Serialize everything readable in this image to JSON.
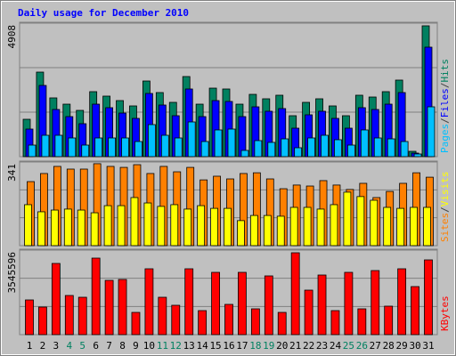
{
  "chart_data": {
    "type": "bar",
    "title": "Daily usage for December 2010",
    "categories": [
      "1",
      "2",
      "3",
      "4",
      "5",
      "6",
      "7",
      "8",
      "9",
      "10",
      "11",
      "12",
      "13",
      "14",
      "15",
      "16",
      "17",
      "18",
      "19",
      "20",
      "21",
      "22",
      "23",
      "24",
      "25",
      "26",
      "27",
      "28",
      "29",
      "30",
      "31"
    ],
    "category_color": "#000000",
    "highlight_color": "#008060",
    "highlighted": [
      3,
      4,
      10,
      11,
      17,
      18,
      24,
      25
    ],
    "legend_separator": "/",
    "separator_color": "#404040",
    "grid": true,
    "panels": [
      {
        "ylim": [
          0,
          4908
        ],
        "yticks": [
          4908
        ],
        "series": [
          {
            "name": "Pages",
            "color": "#00c0ff",
            "values": [
              425,
              785,
              785,
              687,
              425,
              687,
              687,
              687,
              556,
              1178,
              785,
              687,
              1276,
              556,
              982,
              1014,
              229,
              589,
              524,
              654,
              327,
              687,
              785,
              622,
              425,
              982,
              687,
              654,
              556,
              98,
              1832
            ]
          },
          {
            "name": "Files",
            "color": "#0000ff",
            "values": [
              1014,
              2618,
              1734,
              1472,
              1211,
              1930,
              1800,
              1603,
              1407,
              2323,
              1898,
              1505,
              2487,
              1472,
              2061,
              2029,
              1472,
              1832,
              1669,
              1767,
              1047,
              1538,
              1669,
              1407,
              1047,
              1800,
              1734,
              1930,
              2356,
              131,
              4025
            ]
          },
          {
            "name": "Hits",
            "color": "#008060",
            "values": [
              1374,
              3108,
              2160,
              1930,
              1701,
              2389,
              2225,
              2061,
              1865,
              2781,
              2356,
              1996,
              2945,
              1930,
              2519,
              2487,
              1930,
              2290,
              2127,
              2258,
              1505,
              1996,
              2127,
              1865,
              1505,
              2258,
              2192,
              2389,
              2814,
              196,
              4810
            ]
          }
        ]
      },
      {
        "ylim": [
          0,
          341
        ],
        "yticks": [
          341
        ],
        "series": [
          {
            "name": "Sites",
            "color": "#ff8000",
            "values": [
              261,
              294,
              323,
              312,
              312,
              334,
              323,
              319,
              330,
              294,
              323,
              301,
              319,
              268,
              283,
              272,
              294,
              297,
              272,
              232,
              247,
              243,
              265,
              247,
              229,
              254,
              196,
              221,
              254,
              297,
              279
            ]
          },
          {
            "name": "Visits",
            "color": "#ffff00",
            "values": [
              167,
              138,
              145,
              149,
              145,
              134,
              163,
              163,
              196,
              174,
              160,
              167,
              149,
              163,
              152,
              152,
              102,
              123,
              123,
              120,
              156,
              156,
              149,
              167,
              218,
              200,
              185,
              156,
              152,
              156,
              156
            ]
          }
        ]
      },
      {
        "ylim": [
          0,
          3545596
        ],
        "yticks": [
          3545596
        ],
        "series": [
          {
            "name": "KBytes",
            "color": "#ff0000",
            "values": [
              1455558,
              1156982,
              2985760,
              1642168,
              1567524,
              3209692,
              2276642,
              2313964,
              933050,
              2761828,
              1567524,
              1231626,
              2761828,
              1007694,
              2612540,
              1268948,
              2612540,
              1082338,
              2463252,
              933050,
              3433624,
              1866100,
              2500574,
              1007694,
              2612540,
              1082338,
              2687184,
              1194304,
              2761828,
              2015388,
              3135048
            ]
          }
        ]
      }
    ]
  }
}
